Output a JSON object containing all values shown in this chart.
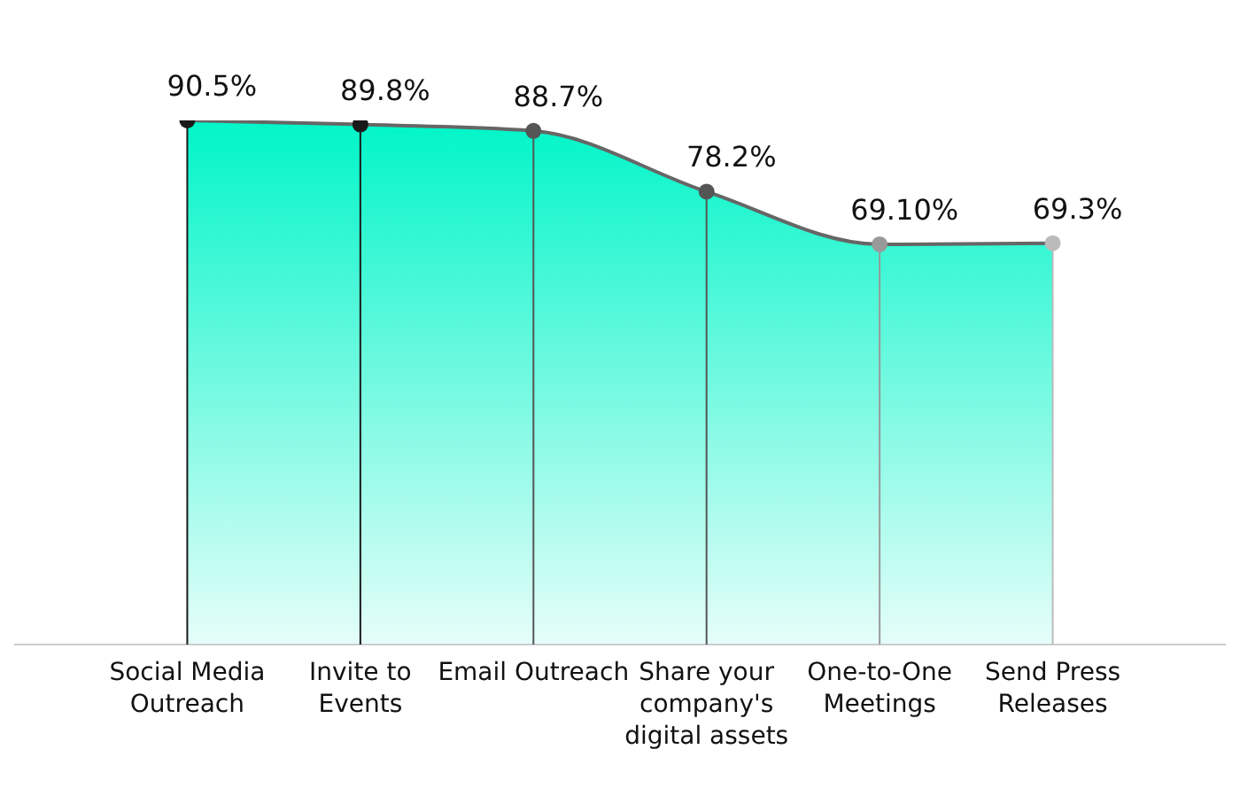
{
  "chart_data": {
    "type": "area",
    "categories": [
      null,
      "Social Media Outreach",
      "Invite to Events",
      "Email Outreach",
      "Share your company's digital assets",
      "One-to-One Meetings",
      "Send Press Releases",
      null
    ],
    "series": [
      {
        "color": "#00f5c8",
        "values": [
          null,
          90.5,
          89.8,
          88.7,
          78.2,
          69.1,
          69.3,
          null
        ],
        "value_labels": [
          null,
          "90.5%",
          "89.8%",
          "88.7%",
          "78.2%",
          "69.10%",
          "69.3%",
          null
        ],
        "colors": [
          null,
          "#1a1a1a",
          "#1a1a1a",
          "#555555",
          "#555555",
          "#999999",
          "#bbbbbb",
          null
        ]
      }
    ],
    "marker": "circle",
    "grid": "x"
  }
}
